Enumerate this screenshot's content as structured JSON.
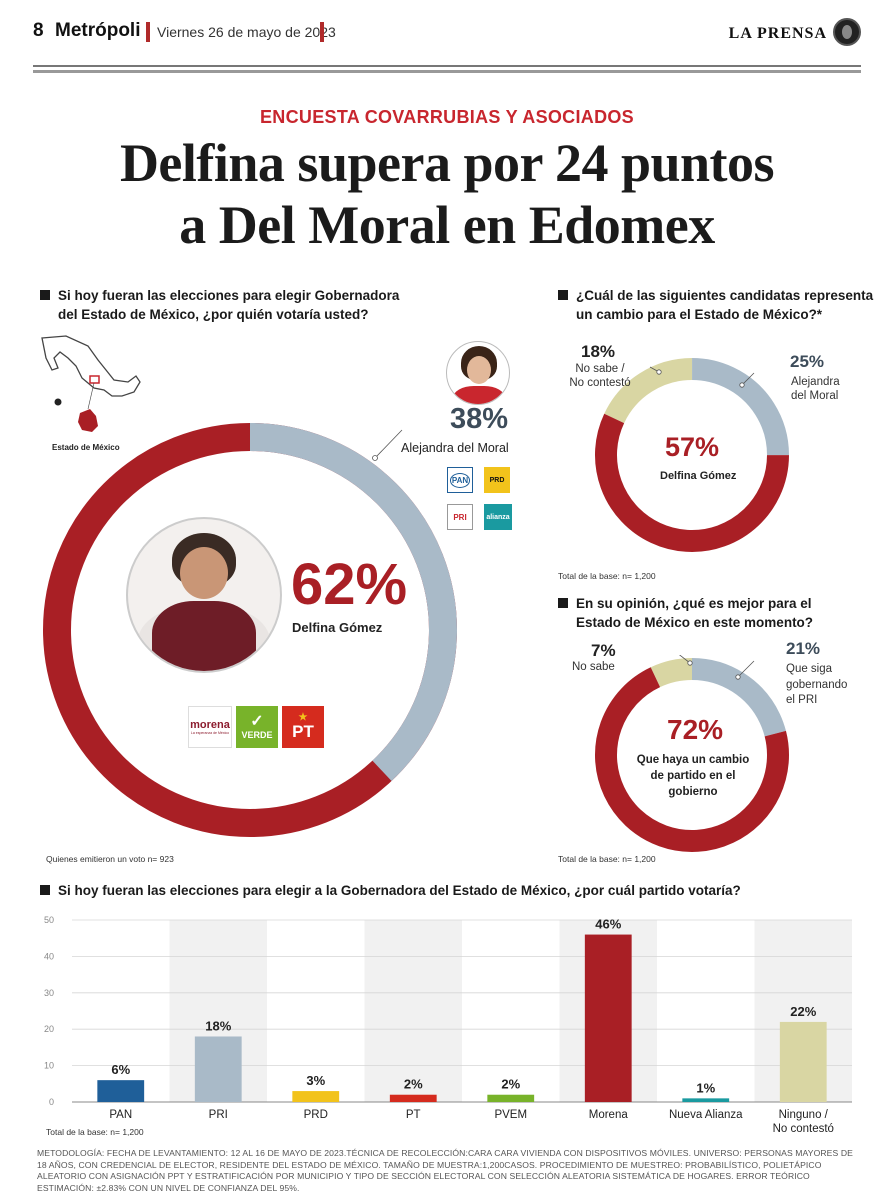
{
  "header": {
    "page_number": "8",
    "section": "Metrópoli",
    "date": "Viernes 26 de mayo de 2023",
    "logo": "LA PRENSA"
  },
  "kicker": "ENCUESTA COVARRUBIAS Y ASOCIADOS",
  "headline": {
    "line1": "Delfina supera por 24 puntos",
    "line2": "a Del Moral en Edomex"
  },
  "colors": {
    "red": "#a91f25",
    "gray_blue": "#a9bac8",
    "khaki": "#d9d6a3",
    "kicker": "#c8262e",
    "pan": "#1f5f99",
    "prd": "#f2c31b",
    "pt": "#d52b1e",
    "pvem": "#78b32a",
    "nueva_alianza": "#1a9aa0"
  },
  "main_poll": {
    "question": "Si hoy fueran las elecciones para elegir Gobernadora del Estado de México, ¿por quién votaría usted?",
    "question_line1": "Si hoy fueran las elecciones para elegir Gobernadora",
    "question_line2": "del Estado de México, ¿por quién votaría usted?",
    "map_label": "Estado de México",
    "delfina": {
      "value": 62,
      "label": "62%",
      "name": "Delfina Gómez",
      "parties": [
        "morena",
        "VERDE",
        "PT"
      ],
      "morena_tagline": "La esperanza de México"
    },
    "alejandra": {
      "value": 38,
      "label": "38%",
      "name": "Alejandra del Moral",
      "parties": [
        "PAN",
        "PRD",
        "PRI",
        "alianza"
      ]
    },
    "base_note": "Quienes emitieron un voto n= 923"
  },
  "poll_change": {
    "question_line1": "¿Cuál de las siguientes candidatas representa",
    "question_line2": "un cambio para el Estado de México?*",
    "segments": [
      {
        "name": "Delfina Gómez",
        "value": 57,
        "label": "57%"
      },
      {
        "name": "Alejandra del Moral",
        "value": 25,
        "label": "25%",
        "desc_line1": "Alejandra",
        "desc_line2": "del Moral"
      },
      {
        "name": "No sabe / No contestó",
        "value": 18,
        "label": "18%",
        "desc_line1": "No sabe /",
        "desc_line2": "No contestó"
      }
    ],
    "base_note": "Total de la base: n= 1,200"
  },
  "poll_better": {
    "question_line1": "En su opinión, ¿qué es mejor para el",
    "question_line2": "Estado de México en este momento?",
    "segments": [
      {
        "name": "Que haya un cambio de partido en el gobierno",
        "value": 72,
        "label": "72%",
        "desc_line1": "Que haya un cambio",
        "desc_line2": "de partido en el",
        "desc_line3": "gobierno"
      },
      {
        "name": "Que siga gobernando el PRI",
        "value": 21,
        "label": "21%",
        "desc_line1": "Que siga",
        "desc_line2": "gobernando",
        "desc_line3": "el PRI"
      },
      {
        "name": "No sabe",
        "value": 7,
        "label": "7%",
        "desc_line1": "No sabe"
      }
    ],
    "base_note": "Total de la base: n= 1,200"
  },
  "bar_poll": {
    "question": "Si hoy fueran las elecciones para elegir a la Gobernadora del Estado de México, ¿por cuál partido votaría?",
    "base_note": "Total de la base: n= 1,200"
  },
  "chart_data": {
    "type": "bar",
    "title": "Si hoy fueran las elecciones para elegir a la Gobernadora del Estado de México, ¿por cuál partido votaría?",
    "categories": [
      "PAN",
      "PRI",
      "PRD",
      "PT",
      "PVEM",
      "Morena",
      "Nueva Alianza",
      "Ninguno / No contestó"
    ],
    "category_lines": [
      [
        "PAN"
      ],
      [
        "PRI"
      ],
      [
        "PRD"
      ],
      [
        "PT"
      ],
      [
        "PVEM"
      ],
      [
        "Morena"
      ],
      [
        "Nueva Alianza"
      ],
      [
        "Ninguno /",
        "No contestó"
      ]
    ],
    "values": [
      6,
      18,
      3,
      2,
      2,
      46,
      1,
      22
    ],
    "value_labels": [
      "6%",
      "18%",
      "3%",
      "2%",
      "2%",
      "46%",
      "1%",
      "22%"
    ],
    "bar_colors": [
      "#1f5f99",
      "#a9bac8",
      "#f2c31b",
      "#d52b1e",
      "#78b32a",
      "#a91f25",
      "#1a9aa0",
      "#d9d6a3"
    ],
    "yticks": [
      0,
      10,
      20,
      30,
      40,
      50
    ],
    "ylim": [
      0,
      50
    ],
    "grid": true,
    "legend": "none"
  },
  "methodology": "METODOLOGÍA: FECHA DE LEVANTAMIENTO: 12 AL 16 DE MAYO DE 2023.TÉCNICA DE RECOLECCIÓN:CARA CARA VIVIENDA CON DISPOSITIVOS MÓVILES. UNIVERSO: PERSONAS MAYORES DE 18 AÑOS, CON CREDENCIAL DE ELECTOR, RESIDENTE DEL ESTADO DE MÉXICO. TAMAÑO DE MUESTRA:1,200CASOS. PROCEDIMIENTO DE MUESTREO: PROBABILÍSTICO, POLIETÁPICO ALEATORIO CON ASIGNACIÓN PPT Y ESTRATIFICACIÓN POR MUNICIPIO Y TIPO DE SECCIÓN ELECTORAL CON SELECCIÓN ALEATORIA SISTEMÁTICA DE HOGARES. ERROR TEÓRICO ESTIMACIÓN: ±2.83% CON UN NIVEL DE CONFIANZA DEL 95%."
}
